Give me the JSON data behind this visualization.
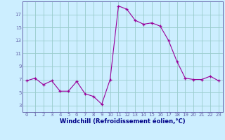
{
  "hours": [
    0,
    1,
    2,
    3,
    4,
    5,
    6,
    7,
    8,
    9,
    10,
    11,
    12,
    13,
    14,
    15,
    16,
    17,
    18,
    19,
    20,
    21,
    22,
    23
  ],
  "values": [
    6.8,
    7.2,
    6.2,
    6.8,
    5.2,
    5.2,
    6.7,
    4.8,
    4.4,
    3.2,
    7.0,
    18.3,
    17.8,
    16.1,
    15.5,
    15.7,
    15.2,
    13.0,
    9.8,
    7.2,
    7.0,
    7.0,
    7.5,
    6.8
  ],
  "xlabel": "Windchill (Refroidissement éolien,°C)",
  "ylim": [
    2,
    19
  ],
  "xlim": [
    -0.5,
    23.5
  ],
  "yticks": [
    3,
    5,
    7,
    9,
    11,
    13,
    15,
    17
  ],
  "xticks": [
    0,
    1,
    2,
    3,
    4,
    5,
    6,
    7,
    8,
    9,
    10,
    11,
    12,
    13,
    14,
    15,
    16,
    17,
    18,
    19,
    20,
    21,
    22,
    23
  ],
  "line_color": "#990099",
  "marker": "+",
  "bg_color": "#cceeff",
  "grid_color": "#99cccc",
  "axis_color": "#6666aa",
  "tick_label_color": "#6666aa",
  "xlabel_color": "#000088"
}
